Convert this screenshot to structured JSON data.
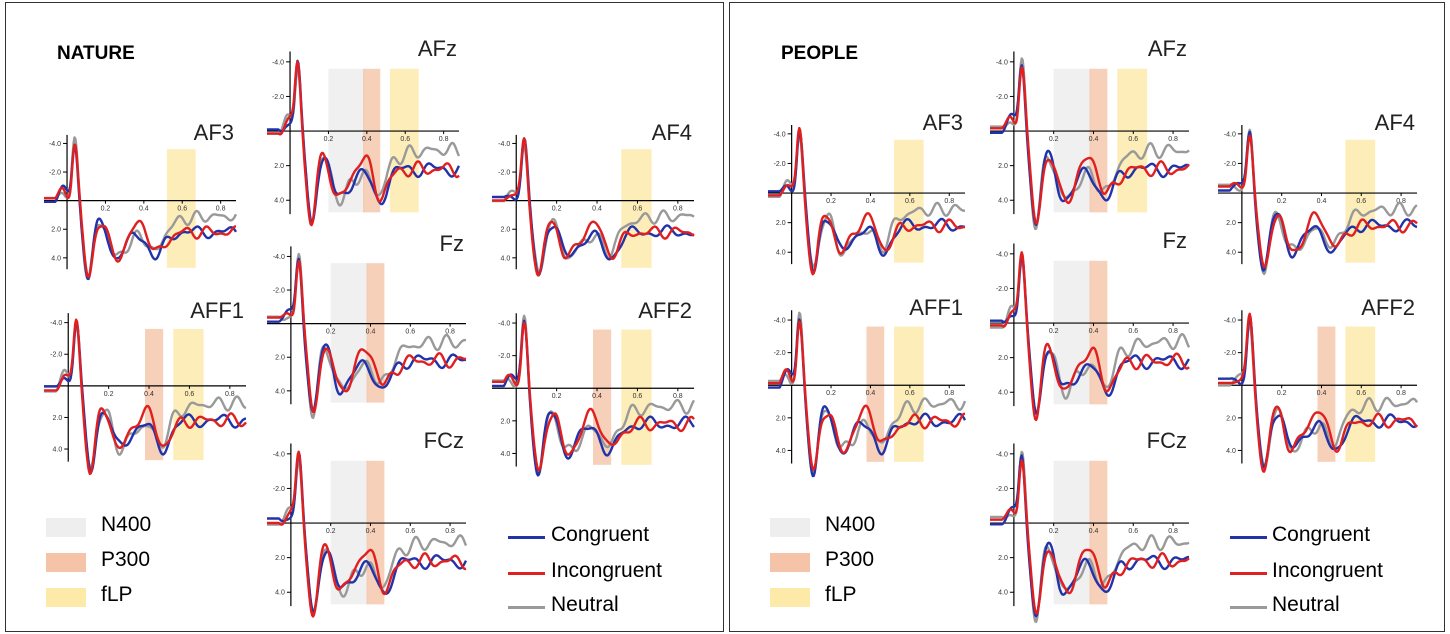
{
  "chart_data": [
    {
      "type": "line",
      "title": "NATURE",
      "x_ticks": [
        "0.2",
        "0.4",
        "0.6",
        "0.8"
      ],
      "y_ticks": [
        "-4.0",
        "-2.0",
        "2.0",
        "4.0"
      ],
      "xlim": [
        0,
        1.0
      ],
      "ylim": [
        -4.8,
        5.2
      ],
      "y_inverted": true,
      "grid": false,
      "series_names": [
        "Congruent",
        "Incongruent",
        "Neutral"
      ],
      "series_colors": [
        "#2233aa",
        "#e02020",
        "#999999"
      ],
      "windows": [
        {
          "name": "N400",
          "color": "#eeeeee"
        },
        {
          "name": "P300",
          "color": "#f5c4a8"
        },
        {
          "name": "fLP",
          "color": "#fde9a8"
        }
      ],
      "electrodes": [
        {
          "label": "AFz",
          "windows": [
            "N400",
            "P300",
            "fLP"
          ]
        },
        {
          "label": "AF3",
          "windows": [
            "fLP"
          ]
        },
        {
          "label": "AF4",
          "windows": [
            "fLP"
          ]
        },
        {
          "label": "Fz",
          "windows": [
            "N400",
            "P300"
          ]
        },
        {
          "label": "AFF1",
          "windows": [
            "P300",
            "fLP"
          ]
        },
        {
          "label": "AFF2",
          "windows": [
            "P300",
            "fLP"
          ]
        },
        {
          "label": "FCz",
          "windows": [
            "N400",
            "P300"
          ]
        }
      ]
    },
    {
      "type": "line",
      "title": "PEOPLE",
      "x_ticks": [
        "0.2",
        "0.4",
        "0.6",
        "0.8"
      ],
      "y_ticks": [
        "-4.0",
        "-2.0",
        "2.0",
        "4.0"
      ],
      "xlim": [
        0,
        1.0
      ],
      "ylim": [
        -4.8,
        5.2
      ],
      "y_inverted": true,
      "grid": false,
      "series_names": [
        "Congruent",
        "Incongruent",
        "Neutral"
      ],
      "series_colors": [
        "#2233aa",
        "#e02020",
        "#999999"
      ],
      "windows": [
        {
          "name": "N400",
          "color": "#eeeeee"
        },
        {
          "name": "P300",
          "color": "#f5c4a8"
        },
        {
          "name": "fLP",
          "color": "#fde9a8"
        }
      ],
      "electrodes": [
        {
          "label": "AFz",
          "windows": [
            "N400",
            "P300",
            "fLP"
          ]
        },
        {
          "label": "AF3",
          "windows": [
            "fLP"
          ]
        },
        {
          "label": "AF4",
          "windows": [
            "fLP"
          ]
        },
        {
          "label": "Fz",
          "windows": [
            "N400",
            "P300"
          ]
        },
        {
          "label": "AFF1",
          "windows": [
            "P300",
            "fLP"
          ]
        },
        {
          "label": "AFF2",
          "windows": [
            "P300",
            "fLP"
          ]
        },
        {
          "label": "FCz",
          "windows": [
            "N400",
            "P300"
          ]
        }
      ]
    }
  ],
  "legend": {
    "windows": [
      "N400",
      "P300",
      "fLP"
    ],
    "conditions": [
      "Congruent",
      "Incongruent",
      "Neutral"
    ]
  }
}
